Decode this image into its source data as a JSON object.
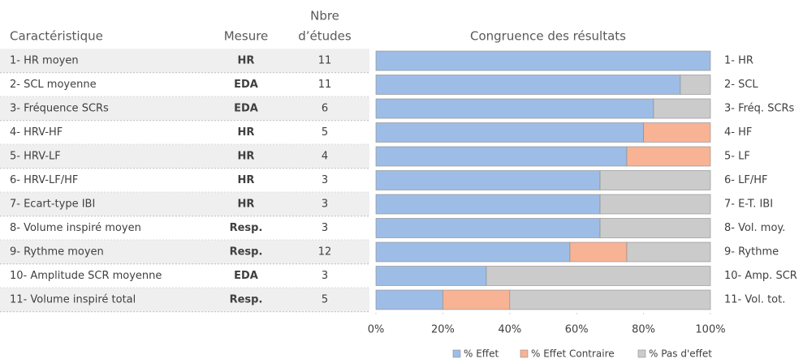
{
  "table": {
    "columns": [
      [
        "Caractéristique"
      ],
      [
        "Mesure"
      ],
      [
        "Nbre",
        "d’études"
      ]
    ],
    "rows": [
      [
        "1- HR moyen",
        "HR",
        11
      ],
      [
        "2- SCL moyenne",
        "EDA",
        11
      ],
      [
        "3- Fréquence SCRs",
        "EDA",
        6
      ],
      [
        "4- HRV-HF",
        "HR",
        5
      ],
      [
        "5- HRV-LF",
        "HR",
        4
      ],
      [
        "6- HRV-LF/HF",
        "HR",
        3
      ],
      [
        "7- Ecart-type IBI",
        "HR",
        3
      ],
      [
        "8- Volume inspiré moyen",
        "Resp.",
        3
      ],
      [
        "9- Rythme moyen",
        "Resp.",
        12
      ],
      [
        "10- Amplitude SCR moyenne",
        "EDA",
        3
      ],
      [
        "11- Volume inspiré total",
        "Resp.",
        5
      ]
    ]
  },
  "chart_data": {
    "type": "stacked_barh",
    "title": "Congruence des résultats",
    "categories": [
      "1- HR",
      "2- SCL",
      "3- Fréq. SCRs",
      "4- HF",
      "5- LF",
      "6- LF/HF",
      "7- E-T. IBI",
      "8- Vol. moy.",
      "9- Rythme",
      "10- Amp. SCR",
      "11- Vol. tot."
    ],
    "series": [
      {
        "name": "% Effet",
        "color": "#9dbde6",
        "values": [
          100,
          91,
          83,
          80,
          75,
          67,
          67,
          67,
          58,
          33,
          20
        ]
      },
      {
        "name": "% Effet Contraire",
        "color": "#f7b394",
        "values": [
          0,
          0,
          0,
          20,
          25,
          0,
          0,
          0,
          17,
          0,
          20
        ]
      },
      {
        "name": "% Pas d'effet",
        "color": "#cbcbcb",
        "values": [
          0,
          9,
          17,
          0,
          0,
          33,
          33,
          33,
          25,
          67,
          60
        ]
      }
    ],
    "xlim": [
      0,
      100
    ],
    "xticks": [
      {
        "value": 0,
        "label": "0%"
      },
      {
        "value": 20,
        "label": "20%"
      },
      {
        "value": 40,
        "label": "40%"
      },
      {
        "value": 60,
        "label": "60%"
      },
      {
        "value": 80,
        "label": "80%"
      },
      {
        "value": 100,
        "label": "100%"
      }
    ],
    "legend": "bottom"
  }
}
